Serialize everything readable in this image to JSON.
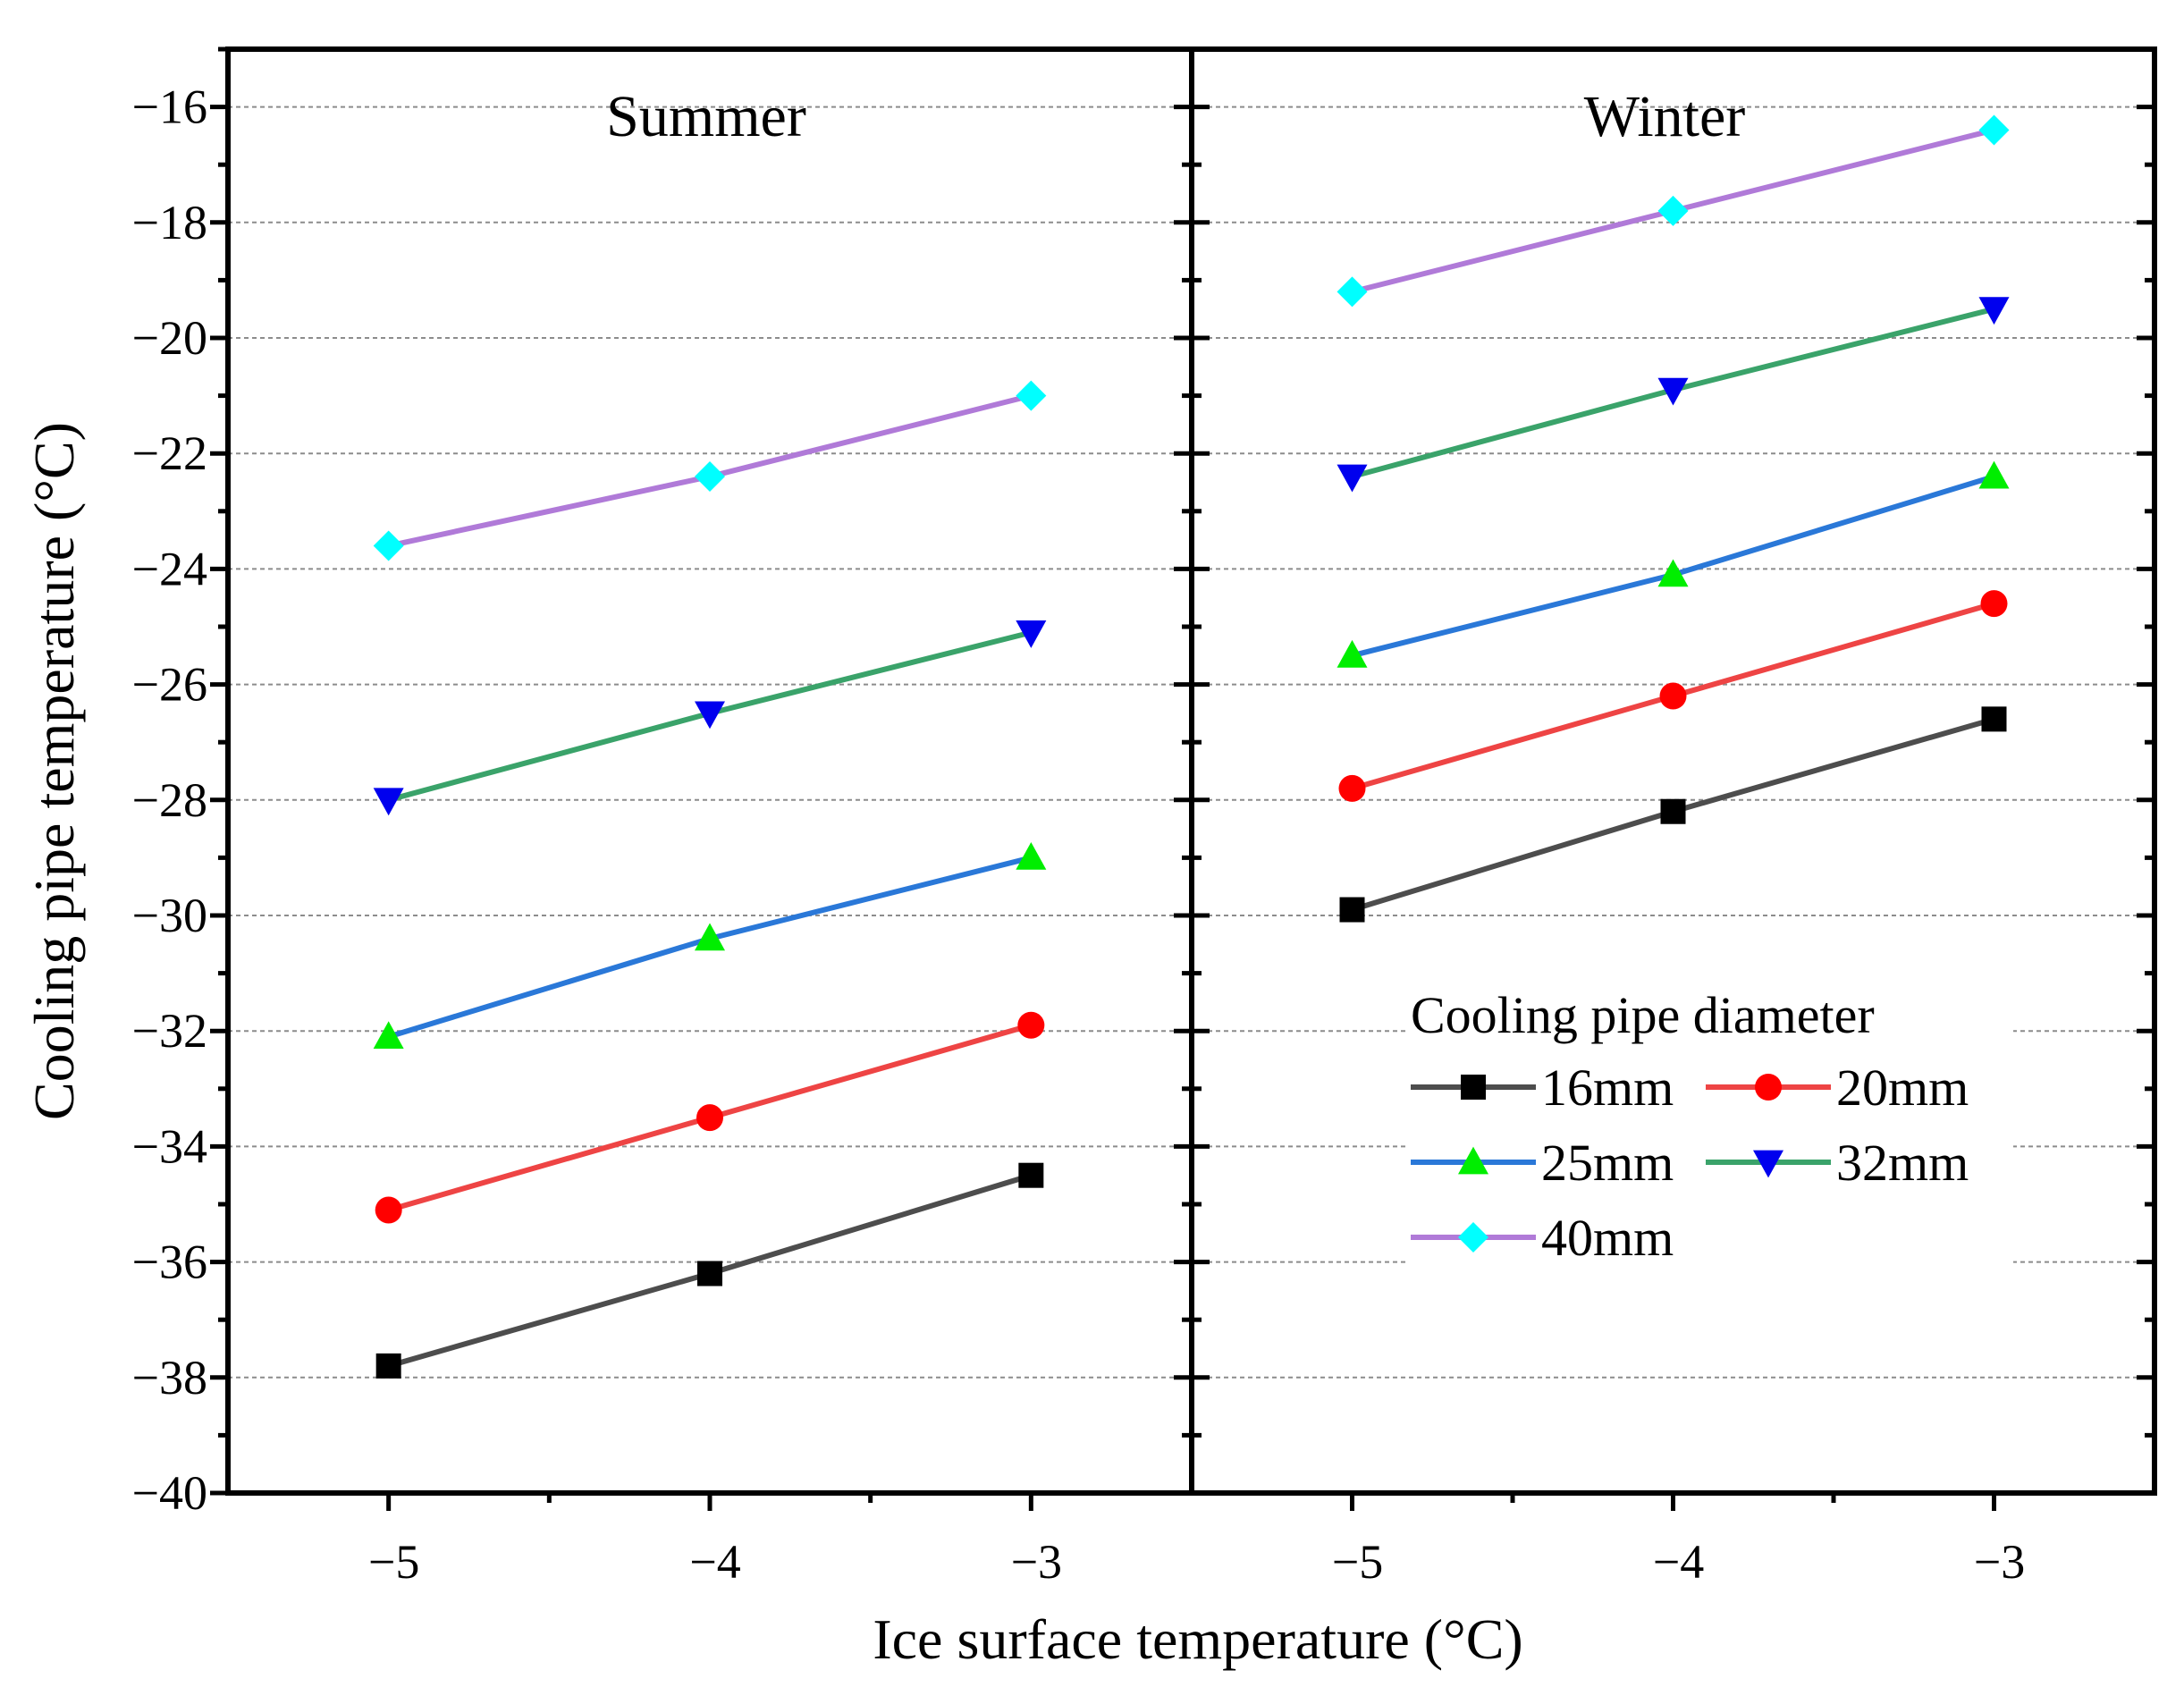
{
  "chart_data": {
    "type": "line",
    "xlabel": "Ice surface temperature (°C)",
    "ylabel": "Cooling pipe temperature (°C)",
    "ylim": [
      -40,
      -15
    ],
    "yticks": [
      -40,
      -38,
      -36,
      -34,
      -32,
      -30,
      -28,
      -26,
      -24,
      -22,
      -20,
      -18,
      -16
    ],
    "ytick_labels": [
      "−40",
      "−38",
      "−36",
      "−34",
      "−32",
      "−30",
      "−28",
      "−26",
      "−24",
      "−22",
      "−20",
      "−18",
      "−16"
    ],
    "xlim": [
      -5.5,
      -2.5
    ],
    "xticks": [
      -5,
      -4,
      -3
    ],
    "xtick_labels": [
      "−5",
      "−4",
      "−3"
    ],
    "grid": true,
    "legend": {
      "title": "Cooling pipe diameter",
      "placement": "lower-right of Winter panel"
    },
    "series_styles": [
      {
        "name": "16mm",
        "line_color": "#4d4d4d",
        "marker": "square",
        "marker_color": "#000000"
      },
      {
        "name": "20mm",
        "line_color": "#ee4444",
        "marker": "circle",
        "marker_color": "#ff0000"
      },
      {
        "name": "25mm",
        "line_color": "#2a78d8",
        "marker": "triangle-up",
        "marker_color": "#00ee00"
      },
      {
        "name": "32mm",
        "line_color": "#3aa36a",
        "marker": "triangle-down",
        "marker_color": "#0000ee"
      },
      {
        "name": "40mm",
        "line_color": "#b07ad8",
        "marker": "diamond",
        "marker_color": "#00ffff"
      }
    ],
    "panels": [
      {
        "title": "Summer",
        "x": [
          -5,
          -4,
          -3
        ],
        "series": [
          {
            "name": "16mm",
            "values": [
              -37.8,
              -36.2,
              -34.5
            ]
          },
          {
            "name": "20mm",
            "values": [
              -35.1,
              -33.5,
              -31.9
            ]
          },
          {
            "name": "25mm",
            "values": [
              -32.1,
              -30.4,
              -29.0
            ]
          },
          {
            "name": "32mm",
            "values": [
              -28.0,
              -26.5,
              -25.1
            ]
          },
          {
            "name": "40mm",
            "values": [
              -23.6,
              -22.4,
              -21.0
            ]
          }
        ]
      },
      {
        "title": "Winter",
        "x": [
          -5,
          -4,
          -3
        ],
        "series": [
          {
            "name": "16mm",
            "values": [
              -29.9,
              -28.2,
              -26.6
            ]
          },
          {
            "name": "20mm",
            "values": [
              -27.8,
              -26.2,
              -24.6
            ]
          },
          {
            "name": "25mm",
            "values": [
              -25.5,
              -24.1,
              -22.4
            ]
          },
          {
            "name": "32mm",
            "values": [
              -22.4,
              -20.9,
              -19.5
            ]
          },
          {
            "name": "40mm",
            "values": [
              -19.2,
              -17.8,
              -16.4
            ]
          }
        ]
      }
    ]
  }
}
